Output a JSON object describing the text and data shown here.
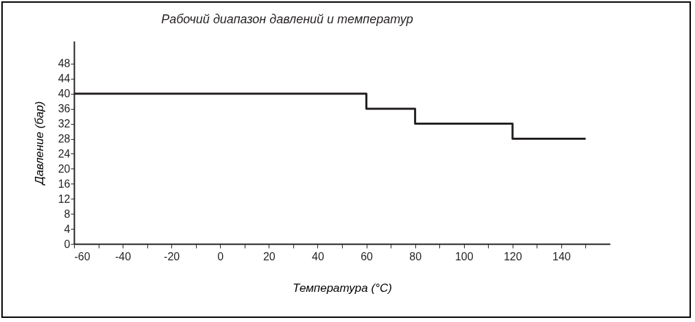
{
  "chart_data": {
    "type": "step",
    "title": "Рабочий диапазон давлений и температур",
    "xlabel": "Температура (°C)",
    "ylabel": "Давление (бар)",
    "x": [
      -60,
      60,
      80,
      120,
      150
    ],
    "series": [
      {
        "color": "#231f20",
        "values": [
          40,
          36,
          32,
          28,
          28
        ]
      }
    ],
    "xlim": [
      -60,
      160
    ],
    "xticks": [
      -60,
      {
        "value": -50,
        "label": null
      },
      -40,
      {
        "value": -30,
        "label": null
      },
      -20,
      {
        "value": -10,
        "label": null
      },
      0,
      {
        "value": 10,
        "label": null
      },
      20,
      {
        "value": 30,
        "label": null
      },
      40,
      {
        "value": 50,
        "label": null
      },
      60,
      {
        "value": 70,
        "label": null
      },
      80,
      {
        "value": 90,
        "label": null
      },
      100,
      {
        "value": 110,
        "label": null
      },
      120,
      {
        "value": 130,
        "label": null
      },
      140,
      {
        "value": 150,
        "label": null
      }
    ],
    "ylim": [
      0,
      54
    ],
    "yticks": [
      0,
      4,
      8,
      12,
      16,
      20,
      24,
      28,
      32,
      36,
      40,
      44,
      48
    ],
    "grid": false,
    "line_style": "solid"
  }
}
